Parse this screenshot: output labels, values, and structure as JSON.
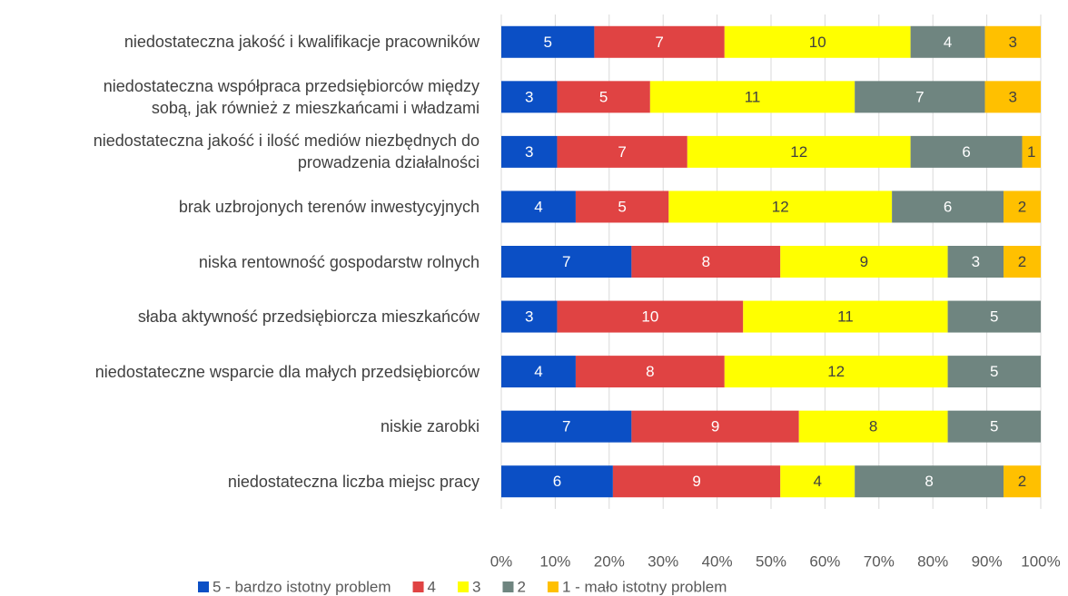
{
  "chart_data": {
    "type": "bar",
    "orientation": "horizontal",
    "stacking": "percent",
    "categories": [
      "niedostateczna jakość i kwalifikacje pracowników",
      "niedostateczna współpraca przedsiębiorców między\nsobą, jak również z mieszkańcami i władzami",
      "niedostateczna jakość i ilość mediów niezbędnych do\nprowadzenia działalności",
      "brak uzbrojonych terenów inwestycyjnych",
      "niska rentowność gospodarstw rolnych",
      "słaba aktywność przedsiębiorcza mieszkańców",
      "niedostateczne wsparcie dla małych przedsiębiorców",
      "niskie zarobki",
      "niedostateczna liczba miejsc pracy"
    ],
    "series": [
      {
        "name": "5 - bardzo istotny problem",
        "color": "#0b4fc5",
        "label_color": "#ffffff",
        "values": [
          5,
          3,
          3,
          4,
          7,
          3,
          4,
          7,
          6
        ]
      },
      {
        "name": "4",
        "color": "#e04343",
        "label_color": "#ffffff",
        "values": [
          7,
          5,
          7,
          5,
          8,
          10,
          8,
          9,
          9
        ]
      },
      {
        "name": "3",
        "color": "#ffff00",
        "label_color": "#404040",
        "values": [
          10,
          11,
          12,
          12,
          9,
          11,
          12,
          8,
          4
        ]
      },
      {
        "name": "2",
        "color": "#6f8580",
        "label_color": "#ffffff",
        "values": [
          4,
          7,
          6,
          6,
          3,
          5,
          5,
          5,
          8
        ]
      },
      {
        "name": "1 - mało istotny problem",
        "color": "#ffc000",
        "label_color": "#404040",
        "values": [
          3,
          3,
          1,
          2,
          2,
          null,
          null,
          null,
          2
        ]
      }
    ],
    "xlim": [
      0,
      100
    ],
    "xticks": [
      {
        "value": 0,
        "label": "0%"
      },
      {
        "value": 10,
        "label": "10%"
      },
      {
        "value": 20,
        "label": "20%"
      },
      {
        "value": 30,
        "label": "30%"
      },
      {
        "value": 40,
        "label": "40%"
      },
      {
        "value": 50,
        "label": "50%"
      },
      {
        "value": 60,
        "label": "60%"
      },
      {
        "value": 70,
        "label": "70%"
      },
      {
        "value": 80,
        "label": "80%"
      },
      {
        "value": 90,
        "label": "90%"
      },
      {
        "value": 100,
        "label": "100%"
      }
    ],
    "grid": true,
    "legend": "bottom"
  }
}
